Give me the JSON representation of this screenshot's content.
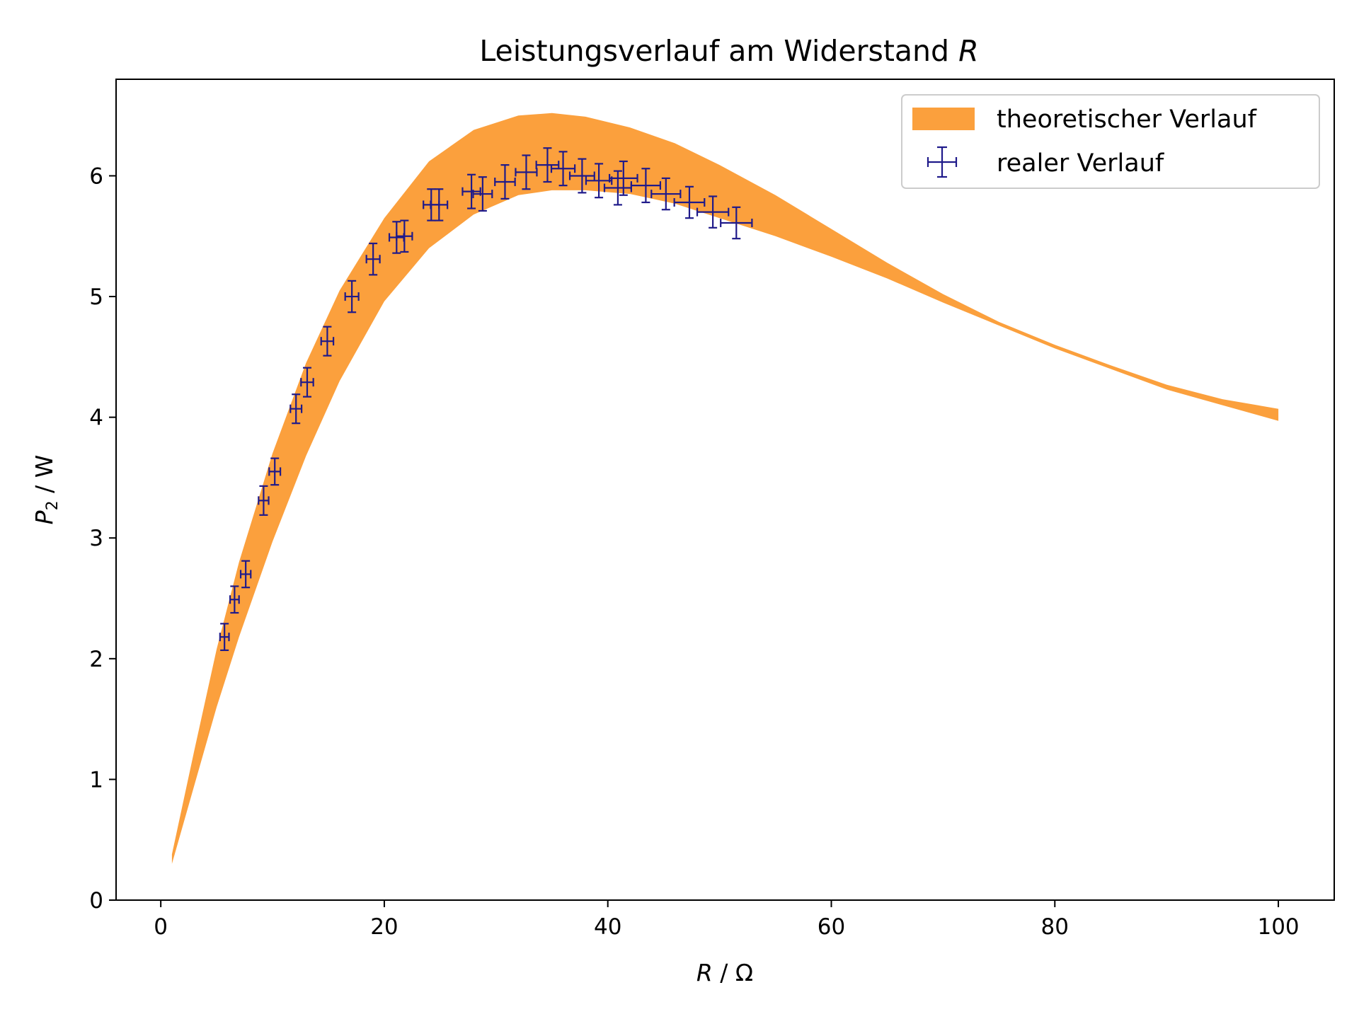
{
  "chart_data": {
    "type": "area",
    "title": "Leistungsverlauf am Widerstand ",
    "title_italic": "R",
    "xlabel_italic": "R",
    "xlabel_rest": " / Ω",
    "ylabel_base": "P",
    "ylabel_sub": "2",
    "ylabel_rest": " / W",
    "xlim": [
      -4,
      105
    ],
    "ylim": [
      0,
      6.8
    ],
    "x_ticks": [
      0,
      20,
      40,
      60,
      80,
      100
    ],
    "y_ticks": [
      0,
      1,
      2,
      3,
      4,
      5,
      6
    ],
    "x_tick_labels": [
      "0",
      "20",
      "40",
      "60",
      "80",
      "100"
    ],
    "y_tick_labels": [
      "0",
      "1",
      "2",
      "3",
      "4",
      "5",
      "6"
    ],
    "grid": false,
    "legend_placement": "top-right",
    "band": {
      "name": "theoretischer Verlauf",
      "color": "#fba03d",
      "x": [
        1,
        3,
        5,
        7,
        10,
        13,
        16,
        20,
        24,
        28,
        32,
        35,
        38,
        42,
        46,
        50,
        55,
        60,
        65,
        70,
        75,
        80,
        85,
        90,
        95,
        100
      ],
      "upper": [
        0.38,
        1.24,
        2.08,
        2.8,
        3.7,
        4.45,
        5.05,
        5.65,
        6.12,
        6.38,
        6.5,
        6.52,
        6.49,
        6.4,
        6.27,
        6.09,
        5.84,
        5.56,
        5.28,
        5.02,
        4.79,
        4.6,
        4.43,
        4.27,
        4.15,
        4.07
      ],
      "lower": [
        0.3,
        0.95,
        1.6,
        2.18,
        2.97,
        3.68,
        4.3,
        4.96,
        5.4,
        5.68,
        5.84,
        5.88,
        5.88,
        5.85,
        5.77,
        5.65,
        5.5,
        5.33,
        5.15,
        4.95,
        4.76,
        4.57,
        4.4,
        4.23,
        4.1,
        3.97
      ]
    },
    "series": [
      {
        "name": "realer Verlauf",
        "color": "#1f1a8a",
        "points": [
          {
            "x": 5.7,
            "y": 2.18,
            "xerr": 0.4,
            "yerr": 0.11
          },
          {
            "x": 6.6,
            "y": 2.49,
            "xerr": 0.4,
            "yerr": 0.11
          },
          {
            "x": 7.6,
            "y": 2.7,
            "xerr": 0.45,
            "yerr": 0.11
          },
          {
            "x": 9.2,
            "y": 3.31,
            "xerr": 0.45,
            "yerr": 0.12
          },
          {
            "x": 10.2,
            "y": 3.55,
            "xerr": 0.5,
            "yerr": 0.11
          },
          {
            "x": 12.1,
            "y": 4.07,
            "xerr": 0.5,
            "yerr": 0.12
          },
          {
            "x": 13.1,
            "y": 4.29,
            "xerr": 0.55,
            "yerr": 0.12
          },
          {
            "x": 14.9,
            "y": 4.63,
            "xerr": 0.55,
            "yerr": 0.12
          },
          {
            "x": 17.1,
            "y": 5.0,
            "xerr": 0.6,
            "yerr": 0.13
          },
          {
            "x": 19.0,
            "y": 5.31,
            "xerr": 0.6,
            "yerr": 0.13
          },
          {
            "x": 21.1,
            "y": 5.49,
            "xerr": 0.65,
            "yerr": 0.13
          },
          {
            "x": 21.8,
            "y": 5.5,
            "xerr": 0.7,
            "yerr": 0.13
          },
          {
            "x": 24.2,
            "y": 5.76,
            "xerr": 0.7,
            "yerr": 0.13
          },
          {
            "x": 24.9,
            "y": 5.76,
            "xerr": 0.75,
            "yerr": 0.13
          },
          {
            "x": 27.8,
            "y": 5.87,
            "xerr": 0.8,
            "yerr": 0.14
          },
          {
            "x": 28.8,
            "y": 5.85,
            "xerr": 0.85,
            "yerr": 0.14
          },
          {
            "x": 30.8,
            "y": 5.95,
            "xerr": 0.9,
            "yerr": 0.14
          },
          {
            "x": 32.7,
            "y": 6.03,
            "xerr": 0.95,
            "yerr": 0.14
          },
          {
            "x": 34.6,
            "y": 6.09,
            "xerr": 1.0,
            "yerr": 0.14
          },
          {
            "x": 36.0,
            "y": 6.06,
            "xerr": 1.05,
            "yerr": 0.14
          },
          {
            "x": 37.7,
            "y": 6.0,
            "xerr": 1.1,
            "yerr": 0.14
          },
          {
            "x": 39.2,
            "y": 5.96,
            "xerr": 1.15,
            "yerr": 0.14
          },
          {
            "x": 40.9,
            "y": 5.9,
            "xerr": 1.2,
            "yerr": 0.14
          },
          {
            "x": 41.4,
            "y": 5.98,
            "xerr": 1.25,
            "yerr": 0.14
          },
          {
            "x": 43.4,
            "y": 5.92,
            "xerr": 1.3,
            "yerr": 0.14
          },
          {
            "x": 45.2,
            "y": 5.85,
            "xerr": 1.3,
            "yerr": 0.13
          },
          {
            "x": 47.3,
            "y": 5.78,
            "xerr": 1.35,
            "yerr": 0.13
          },
          {
            "x": 49.4,
            "y": 5.7,
            "xerr": 1.4,
            "yerr": 0.13
          },
          {
            "x": 51.5,
            "y": 5.61,
            "xerr": 1.4,
            "yerr": 0.13
          }
        ]
      }
    ]
  }
}
